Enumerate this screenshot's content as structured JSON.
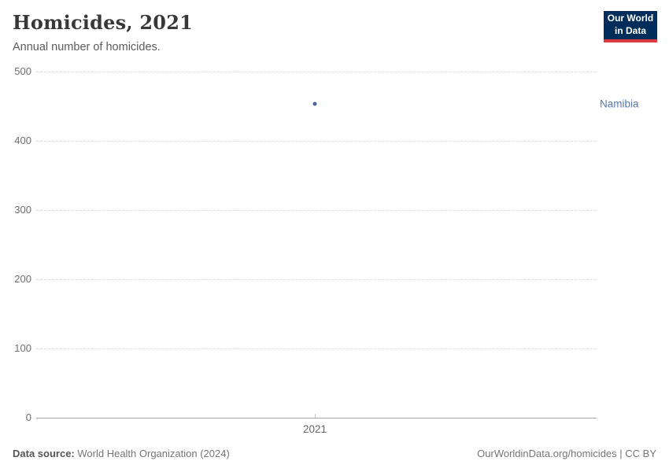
{
  "header": {
    "title": "Homicides, 2021",
    "subtitle": "Annual number of homicides.",
    "logo": {
      "line1": "Our World",
      "line2": "in Data",
      "bg_color": "#002d59",
      "accent_color": "#d93b3e"
    }
  },
  "chart_data": {
    "type": "scatter",
    "title": "Homicides, 2021",
    "subtitle": "Annual number of homicides.",
    "x": [
      2021
    ],
    "x_tick_labels": [
      "2021"
    ],
    "series": [
      {
        "name": "Namibia",
        "values": [
          453
        ],
        "color": "#44639f",
        "label_color": "#5b79ab"
      }
    ],
    "ylim": [
      0,
      500
    ],
    "yticks": [
      0,
      100,
      200,
      300,
      400,
      500
    ],
    "ytick_labels": [
      "0",
      "100",
      "200",
      "300",
      "400",
      "500"
    ],
    "xlabel": "",
    "ylabel": "",
    "grid": true,
    "gridline_style": "dashed",
    "legend_position": "right"
  },
  "footer": {
    "source_label": "Data source:",
    "source_text": "World Health Organization (2024)",
    "credit": "OurWorldinData.org/homicides | CC BY"
  }
}
